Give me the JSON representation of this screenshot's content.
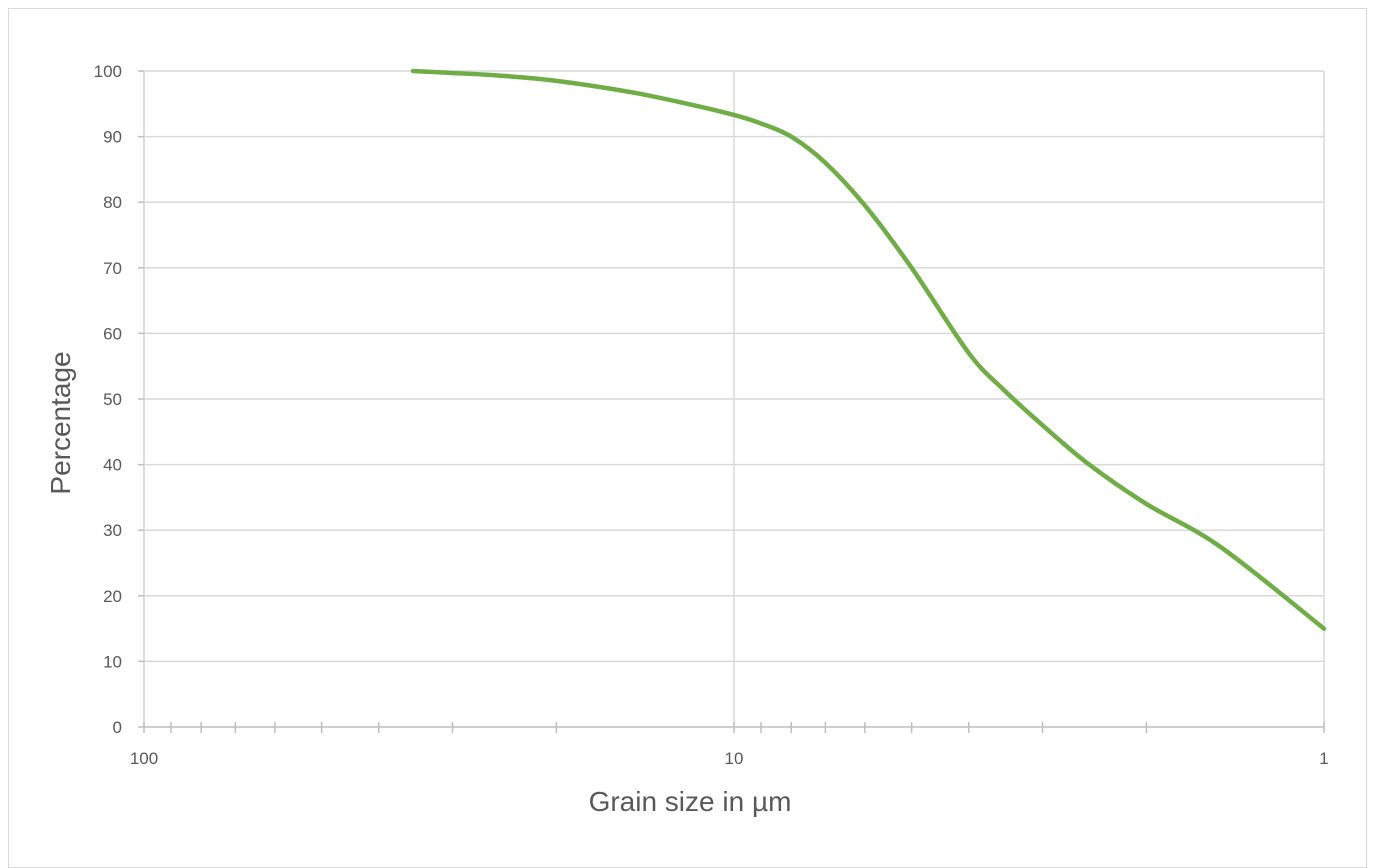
{
  "chart_data": {
    "type": "line",
    "title": "",
    "xlabel": "Grain size in µm",
    "ylabel": "Percentage",
    "x_scale": "log",
    "x_reversed": true,
    "xlim": [
      100,
      1
    ],
    "ylim": [
      0,
      100
    ],
    "x_major_ticks": [
      {
        "value": 100,
        "label": "100"
      },
      {
        "value": 10,
        "label": "10"
      },
      {
        "value": 1,
        "label": "1"
      }
    ],
    "x_minor_ticks": [
      90,
      80,
      70,
      60,
      50,
      40,
      30,
      20,
      9,
      8,
      7,
      6,
      5,
      4,
      3,
      2
    ],
    "y_ticks": [
      0,
      10,
      20,
      30,
      40,
      50,
      60,
      70,
      80,
      90,
      100
    ],
    "y_tick_labels": [
      "0",
      "10",
      "20",
      "30",
      "40",
      "50",
      "60",
      "70",
      "80",
      "90",
      "100"
    ],
    "grid": {
      "horizontal": true,
      "vertical_major": true
    },
    "line_color": "#70ad47",
    "grid_color": "#d9d9d9",
    "text_color": "#595959",
    "series": [
      {
        "x": [
          35,
          30,
          25,
          20,
          15,
          12,
          10,
          9,
          8,
          7,
          6,
          5,
          4,
          3.5,
          3,
          2.5,
          2,
          1.5,
          1
        ],
        "y": [
          100,
          99.7,
          99.3,
          98.5,
          96.8,
          95,
          93.3,
          92,
          90,
          86,
          79.5,
          70,
          57,
          51.5,
          46,
          40,
          34,
          27.5,
          15
        ]
      }
    ]
  }
}
